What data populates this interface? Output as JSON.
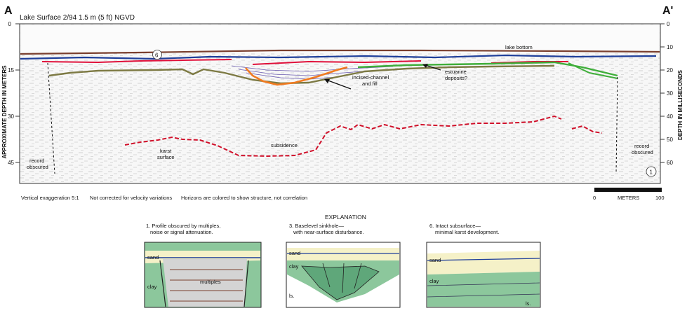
{
  "header": {
    "left_letter": "A",
    "right_letter": "A'",
    "lake_surface": "Lake Surface 2/94  1.5 m (5 ft) NGVD"
  },
  "profile": {
    "y_axis_left_title": "APPROXIMATE DEPTH IN METERS",
    "y_axis_left_ticks": [
      "0",
      "15",
      "30",
      "45"
    ],
    "y_axis_right_title": "DEPTH IN MILLISECONDS",
    "y_axis_right_ticks": [
      "0",
      "10",
      "20",
      "30",
      "40",
      "50",
      "60"
    ],
    "labels": {
      "lake_bottom": "lake bottom",
      "marker_6": "6",
      "marker_1": "1",
      "incised_1": "incised-channel",
      "incised_2": "and fill",
      "estuarine_1": "estuarine",
      "estuarine_2": "deposits?",
      "karst_1": "karst",
      "karst_2": "surface",
      "subsidence": "subsidence",
      "record_left_1": "record",
      "record_left_2": "obscured",
      "record_right_1": "record",
      "record_right_2": "obscured"
    },
    "colors": {
      "lake_bottom": "#7a3f2e",
      "blue_horizon": "#1f3f9a",
      "red_horizon": "#e0103a",
      "olive_horizon": "#7d7a44",
      "orange_channel": "#f07a20",
      "green_horizon": "#3fae3a",
      "karst_dashed": "#d0102a"
    }
  },
  "notes": {
    "vertical_exaggeration": "Vertical exaggeration 5:1",
    "velocity": "Not corrected for velocity variations",
    "horizons": "Horizons are colored to show structure, not correlation"
  },
  "scale_bar": {
    "start": "0",
    "label": "METERS",
    "end": "100"
  },
  "explanation": {
    "title": "EXPLANATION",
    "panels": [
      {
        "caption_1": "1. Profile obscured by multiples,",
        "caption_2": "noise or signal attenuation.",
        "labels": {
          "sand": "sand",
          "clay": "clay",
          "multiples": "multiples"
        }
      },
      {
        "caption_1": "3. Baselevel sinkhole—",
        "caption_2": "with near-surface disturbance.",
        "labels": {
          "sand": "sand",
          "clay": "clay",
          "ls": "ls."
        }
      },
      {
        "caption_1": "6. Intact subsurface—",
        "caption_2": "minimal karst development.",
        "labels": {
          "sand": "sand",
          "clay": "clay",
          "ls": "ls."
        }
      }
    ]
  }
}
